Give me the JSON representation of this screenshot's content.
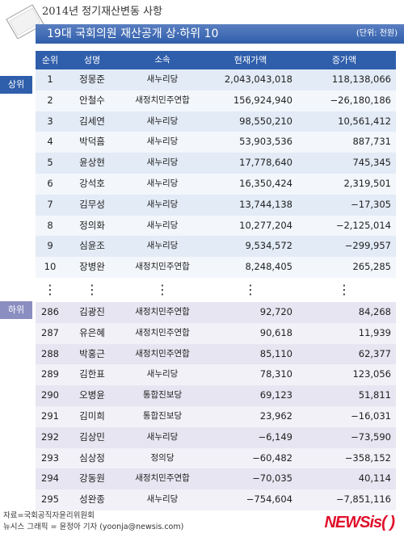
{
  "header": {
    "subtitle": "2014년 정기재산변동 사항",
    "title": "19대 국회의원 재산공개 상·하위 10",
    "unit": "(단위: 천원)"
  },
  "section_labels": {
    "upper": "상위",
    "lower": "하위"
  },
  "columns": {
    "rank": "순위",
    "name": "성명",
    "party": "소속",
    "asset": "현재가액",
    "change": "증가액"
  },
  "upper_rows": [
    {
      "rank": "1",
      "name": "정몽준",
      "party": "새누리당",
      "asset": "2,043,043,018",
      "change": "118,138,066"
    },
    {
      "rank": "2",
      "name": "안철수",
      "party": "새정치민주연합",
      "asset": "156,924,940",
      "change": "−26,180,186"
    },
    {
      "rank": "3",
      "name": "김세연",
      "party": "새누리당",
      "asset": "98,550,210",
      "change": "10,561,412"
    },
    {
      "rank": "4",
      "name": "박덕흠",
      "party": "새누리당",
      "asset": "53,903,536",
      "change": "887,731"
    },
    {
      "rank": "5",
      "name": "윤상현",
      "party": "새누리당",
      "asset": "17,778,640",
      "change": "745,345"
    },
    {
      "rank": "6",
      "name": "강석호",
      "party": "새누리당",
      "asset": "16,350,424",
      "change": "2,319,501"
    },
    {
      "rank": "7",
      "name": "김무성",
      "party": "새누리당",
      "asset": "13,744,138",
      "change": "−17,305"
    },
    {
      "rank": "8",
      "name": "정의화",
      "party": "새누리당",
      "asset": "10,277,204",
      "change": "−2,125,014"
    },
    {
      "rank": "9",
      "name": "심윤조",
      "party": "새누리당",
      "asset": "9,534,572",
      "change": "−299,957"
    },
    {
      "rank": "10",
      "name": "장병완",
      "party": "새정치민주연합",
      "asset": "8,248,405",
      "change": "265,285"
    }
  ],
  "lower_rows": [
    {
      "rank": "286",
      "name": "김광진",
      "party": "새정치민주연합",
      "asset": "92,720",
      "change": "84,268"
    },
    {
      "rank": "287",
      "name": "유은혜",
      "party": "새정치민주연합",
      "asset": "90,618",
      "change": "11,939"
    },
    {
      "rank": "288",
      "name": "박홍근",
      "party": "새정치민주연합",
      "asset": "85,110",
      "change": "62,377"
    },
    {
      "rank": "289",
      "name": "김한표",
      "party": "새누리당",
      "asset": "78,310",
      "change": "123,056"
    },
    {
      "rank": "290",
      "name": "오병윤",
      "party": "통합진보당",
      "asset": "69,123",
      "change": "51,811"
    },
    {
      "rank": "291",
      "name": "김미희",
      "party": "통합진보당",
      "asset": "23,962",
      "change": "−16,031"
    },
    {
      "rank": "292",
      "name": "김상민",
      "party": "새누리당",
      "asset": "−6,149",
      "change": "−73,590"
    },
    {
      "rank": "293",
      "name": "심상정",
      "party": "정의당",
      "asset": "−60,482",
      "change": "−358,152"
    },
    {
      "rank": "294",
      "name": "강동원",
      "party": "새정치민주연합",
      "asset": "−70,035",
      "change": "40,114"
    },
    {
      "rank": "295",
      "name": "성완종",
      "party": "새누리당",
      "asset": "−754,604",
      "change": "−7,851,116"
    }
  ],
  "ellipsis": "⋮",
  "footer": {
    "source": "자료=국회공직자윤리위원회",
    "credit": "뉴시스 그래픽 = 윤정아 기자 (yoonja@newsis.com)"
  },
  "logo": "NEWSis( )"
}
